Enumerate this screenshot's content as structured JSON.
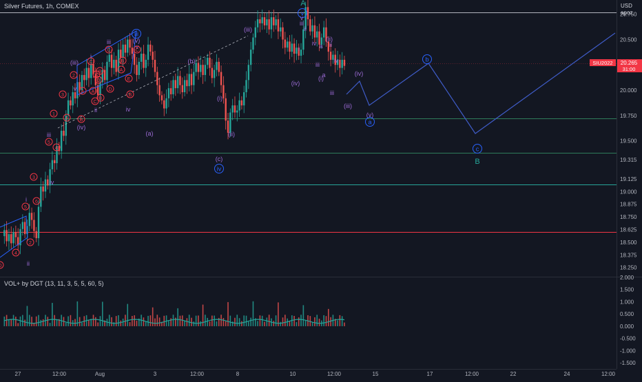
{
  "header": {
    "symbol": "Silver Futures, 1h, COMEX",
    "currency": "USD",
    "price_scale_mode": "apoz"
  },
  "price_tag": {
    "symbol": "SIU2022",
    "price": "20.265",
    "countdown": "31:00"
  },
  "volume_indicator": {
    "title": "VOL+ by DGT (13, 11, 3, 5, 5, 60, 5)"
  },
  "colors": {
    "background": "#131722",
    "up": "#26a69a",
    "down": "#ef5350",
    "wave_blue": "#2962ff",
    "wave_purple": "#9c6bd6",
    "wave_red": "#f23645",
    "wave_green": "#26a69a",
    "projection": "#3f5cc8",
    "resistance": "#b2b5be",
    "support_green": "#2e7d5b",
    "support_red": "#f23645"
  },
  "chart_data": [
    {
      "type": "candlestick",
      "title": "Silver Futures, 1h, COMEX",
      "xlabel": "",
      "ylabel": "USD",
      "x_ticks": [
        "27",
        "12:00",
        "Aug",
        "3",
        "12:00",
        "8",
        "10",
        "12:00",
        "15",
        "17",
        "12:00",
        "22",
        "24",
        "12:00"
      ],
      "y_ticks": [
        20.75,
        20.5,
        20.25,
        20.0,
        19.75,
        19.5,
        19.315,
        19.125,
        19.0,
        18.875,
        18.75,
        18.625,
        18.5,
        18.375,
        18.25
      ],
      "ylim": [
        18.16,
        20.89
      ],
      "last_price": 20.265,
      "price_path": [
        18.56,
        18.62,
        18.51,
        18.58,
        18.49,
        18.6,
        18.55,
        18.47,
        18.63,
        18.7,
        18.58,
        18.66,
        18.79,
        18.72,
        18.61,
        18.54,
        18.85,
        19.05,
        19.0,
        19.12,
        19.06,
        19.22,
        19.31,
        19.28,
        19.45,
        19.4,
        19.6,
        19.55,
        19.75,
        19.9,
        19.85,
        19.98,
        19.92,
        20.08,
        20.0,
        20.15,
        20.1,
        20.22,
        20.12,
        20.26,
        20.16,
        20.05,
        19.95,
        20.08,
        20.2,
        20.1,
        20.28,
        20.35,
        20.22,
        20.3,
        20.18,
        20.4,
        20.32,
        20.45,
        20.37,
        20.5,
        20.42,
        20.36,
        20.25,
        20.15,
        20.28,
        20.36,
        20.22,
        20.3,
        20.45,
        20.38,
        20.3,
        20.18,
        20.05,
        19.95,
        19.9,
        19.82,
        19.92,
        20.02,
        19.96,
        20.1,
        20.02,
        20.14,
        20.05,
        19.98,
        20.1,
        20.04,
        20.16,
        20.05,
        20.18,
        20.27,
        20.18,
        20.25,
        20.15,
        20.25,
        20.32,
        20.22,
        20.12,
        20.2,
        20.28,
        20.18,
        20.05,
        19.92,
        19.7,
        19.58,
        19.78,
        19.85,
        19.78,
        19.8,
        19.9,
        19.85,
        19.98,
        20.1,
        20.25,
        20.4,
        20.52,
        20.62,
        20.7,
        20.66,
        20.72,
        20.64,
        20.7,
        20.6,
        20.72,
        20.64,
        20.7,
        20.58,
        20.62,
        20.5,
        20.42,
        20.48,
        20.38,
        20.46,
        20.36,
        20.42,
        20.34,
        20.4,
        20.6,
        20.82,
        20.7,
        20.58,
        20.64,
        20.52,
        20.58,
        20.45,
        20.52,
        20.62,
        20.48,
        20.38,
        20.3,
        20.35,
        20.25,
        20.3,
        20.22,
        20.3,
        20.24
      ],
      "volume_scale": {
        "y_ticks": [
          2.0,
          1.5,
          1.0,
          0.5,
          0.0,
          -0.5,
          -1.0,
          -1.5
        ],
        "ylim": [
          -1.75,
          2.0
        ]
      },
      "horizontal_levels": [
        {
          "price": 20.77,
          "color": "#b2b5be"
        },
        {
          "price": 19.72,
          "color": "#2e7d5b"
        },
        {
          "price": 19.385,
          "color": "#2e7d5b"
        },
        {
          "price": 19.07,
          "color": "#26a69a"
        },
        {
          "price": 18.6,
          "color": "#f23645"
        }
      ],
      "wave_labels": [
        "A",
        "B",
        "v",
        "iii",
        "(v)",
        "(iii)",
        "(b)",
        "(a)",
        "(i)",
        "(ii)",
        "(c)",
        "(iv)",
        "iv",
        "(iv)",
        "(iii)",
        "(v)",
        "a",
        "b",
        "c",
        "i",
        "ii",
        "iii",
        "iv",
        "v",
        "1",
        "2",
        "3",
        "4",
        "5",
        "A",
        "B",
        "C",
        "D",
        "E"
      ],
      "projection_waypoints": [
        "(iv)",
        "(v)",
        "a",
        "b",
        "c",
        "B"
      ]
    }
  ]
}
